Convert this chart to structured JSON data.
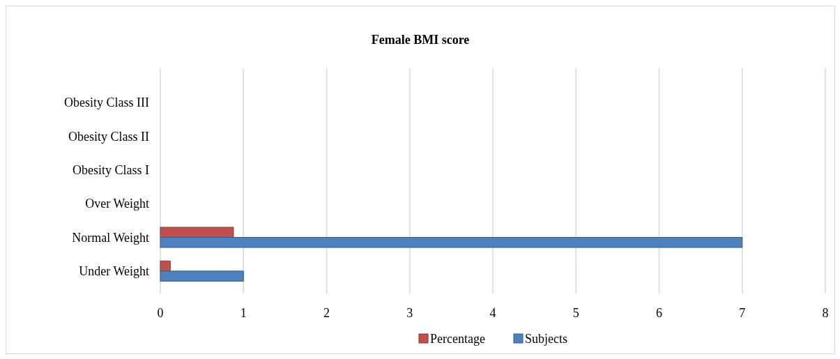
{
  "chart_data": {
    "type": "bar",
    "orientation": "horizontal",
    "title": "Female BMI score",
    "categories": [
      "Obesity Class III",
      "Obesity Class II",
      "Obesity Class I",
      "Over Weight",
      "Normal Weight",
      "Under Weight"
    ],
    "series": [
      {
        "name": "Percentage",
        "color": "#c0504d",
        "values": [
          0,
          0,
          0,
          0,
          0.88,
          0.12
        ]
      },
      {
        "name": "Subjects",
        "color": "#4f81bd",
        "values": [
          0,
          0,
          0,
          0,
          7,
          1
        ]
      }
    ],
    "xlim": [
      0,
      8
    ],
    "xticks": [
      0,
      1,
      2,
      3,
      4,
      5,
      6,
      7,
      8
    ],
    "grid": "x",
    "legend": "bottom"
  }
}
